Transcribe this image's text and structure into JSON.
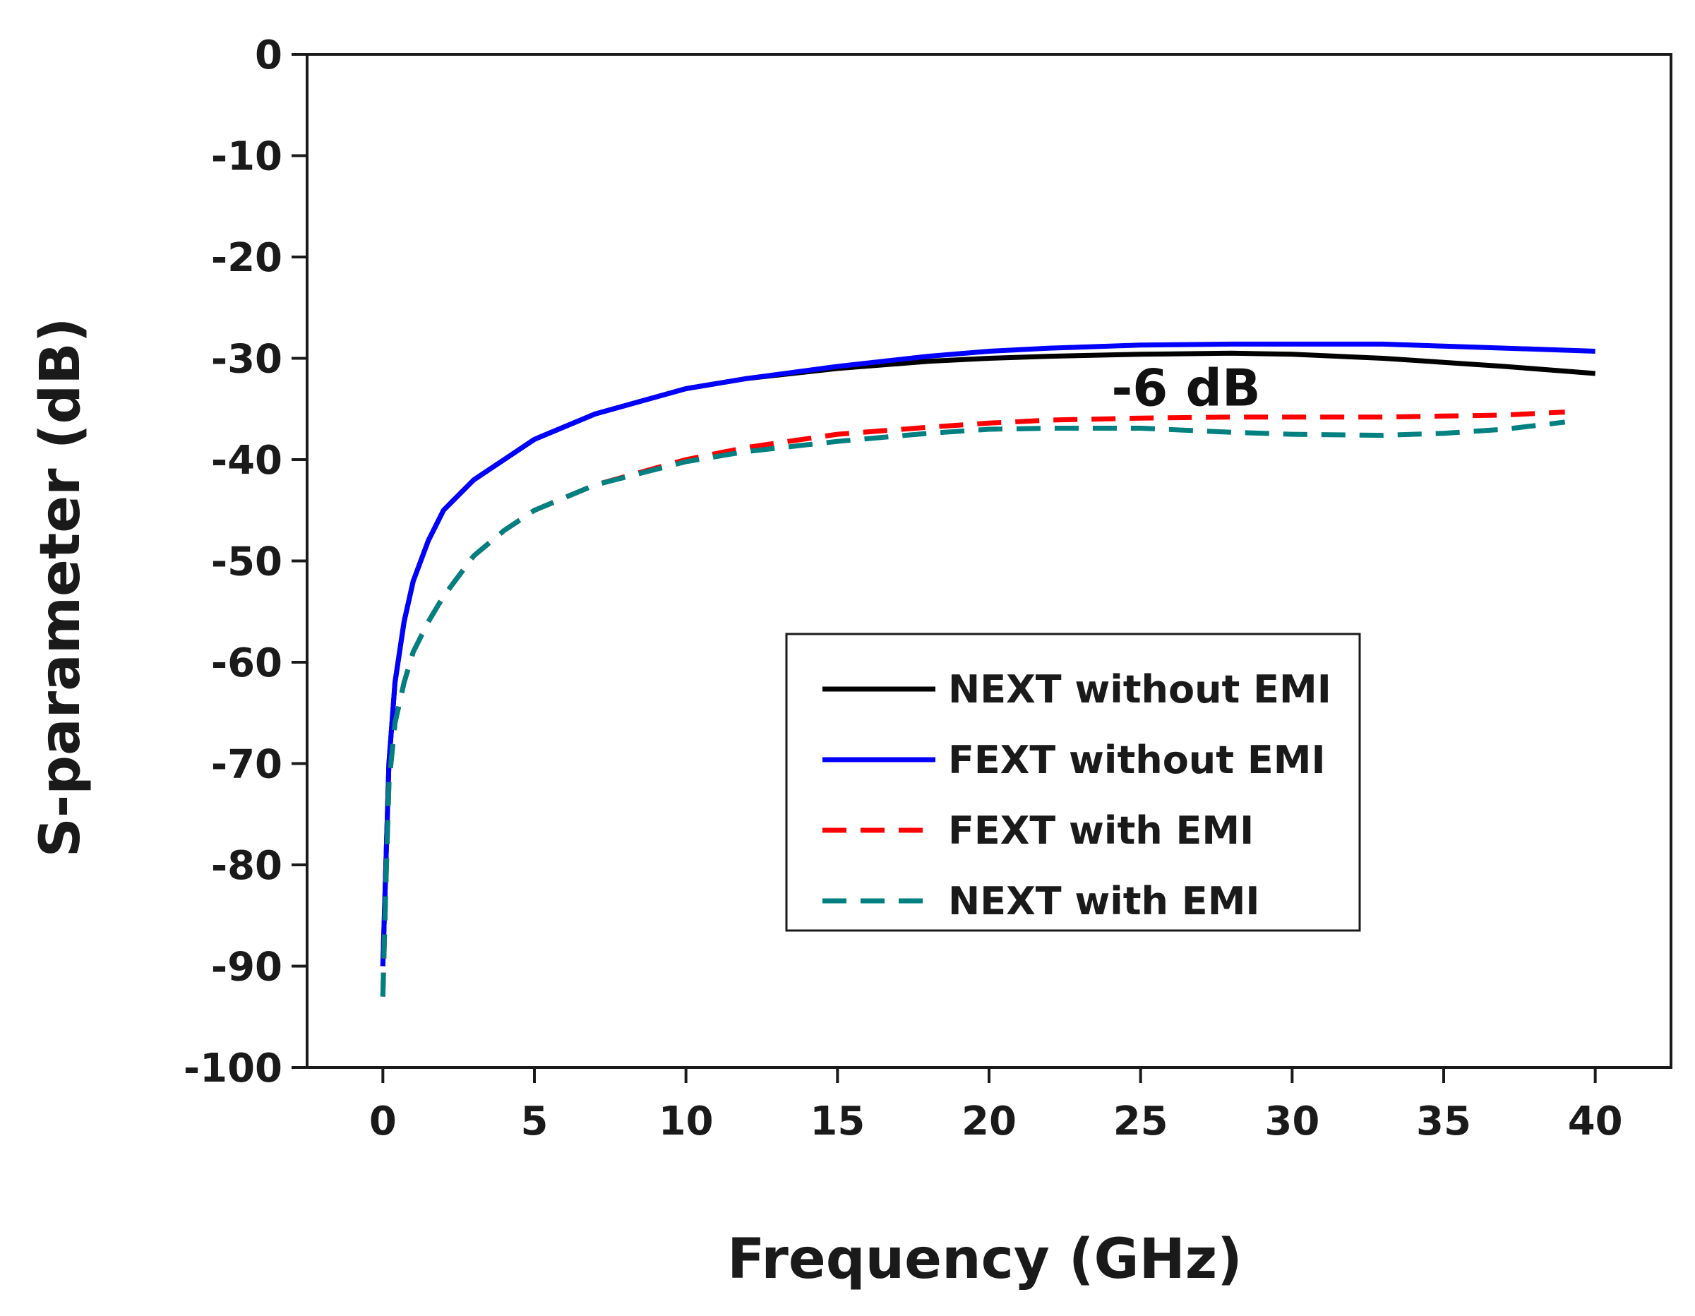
{
  "chart_data": {
    "type": "line",
    "xlabel": "Frequency (GHz)",
    "ylabel": "S-parameter (dB)",
    "xlim": [
      -2.5,
      42.5
    ],
    "ylim": [
      -100,
      0
    ],
    "xticks": [
      0,
      5,
      10,
      15,
      20,
      25,
      30,
      35,
      40
    ],
    "yticks": [
      0,
      -10,
      -20,
      -30,
      -40,
      -50,
      -60,
      -70,
      -80,
      -90,
      -100
    ],
    "grid": false,
    "legend_position": "center-right",
    "annotations": [
      {
        "text": "-6 dB",
        "x": 26.5,
        "y": -33
      }
    ],
    "series": [
      {
        "name": "NEXT without EMI",
        "color": "#000000",
        "style": "solid",
        "x": [
          0,
          0.1,
          0.2,
          0.4,
          0.7,
          1,
          1.5,
          2,
          3,
          4,
          5,
          7,
          10,
          12,
          15,
          18,
          20,
          22,
          25,
          28,
          30,
          33,
          35,
          37,
          40
        ],
        "y": [
          -90,
          -80,
          -70,
          -62,
          -56,
          -52,
          -48,
          -45,
          -42,
          -40,
          -38,
          -35.5,
          -33,
          -32,
          -31,
          -30.3,
          -30,
          -29.8,
          -29.6,
          -29.5,
          -29.6,
          -30,
          -30.4,
          -30.8,
          -31.5
        ]
      },
      {
        "name": "FEXT without EMI",
        "color": "#0000ff",
        "style": "solid",
        "x": [
          0,
          0.1,
          0.2,
          0.4,
          0.7,
          1,
          1.5,
          2,
          3,
          4,
          5,
          7,
          10,
          12,
          15,
          18,
          20,
          22,
          25,
          28,
          30,
          33,
          35,
          37,
          40
        ],
        "y": [
          -90,
          -80,
          -70,
          -62,
          -56,
          -52,
          -48,
          -45,
          -42,
          -40,
          -38,
          -35.5,
          -33,
          -32,
          -30.8,
          -29.8,
          -29.3,
          -29,
          -28.7,
          -28.6,
          -28.6,
          -28.6,
          -28.8,
          -29,
          -29.3
        ]
      },
      {
        "name": "FEXT with EMI",
        "color": "#ff0000",
        "style": "dashed",
        "x": [
          0,
          0.1,
          0.2,
          0.4,
          0.7,
          1,
          1.5,
          2,
          3,
          4,
          5,
          7,
          10,
          12,
          15,
          18,
          20,
          22,
          25,
          28,
          30,
          33,
          35,
          37,
          39
        ],
        "y": [
          -93,
          -82,
          -72,
          -66,
          -62,
          -59,
          -56,
          -53.5,
          -49.5,
          -47,
          -45,
          -42.5,
          -40,
          -38.8,
          -37.5,
          -36.8,
          -36.4,
          -36.1,
          -35.9,
          -35.8,
          -35.8,
          -35.8,
          -35.7,
          -35.6,
          -35.3
        ]
      },
      {
        "name": "NEXT with EMI",
        "color": "#008080",
        "style": "dashed",
        "x": [
          0,
          0.1,
          0.2,
          0.4,
          0.7,
          1,
          1.5,
          2,
          3,
          4,
          5,
          7,
          10,
          12,
          15,
          18,
          20,
          22,
          25,
          28,
          30,
          33,
          35,
          37,
          39
        ],
        "y": [
          -93,
          -82,
          -72,
          -66,
          -62,
          -59,
          -56,
          -53.5,
          -49.5,
          -47,
          -45,
          -42.5,
          -40.2,
          -39.2,
          -38.2,
          -37.4,
          -37,
          -36.9,
          -36.9,
          -37.3,
          -37.5,
          -37.6,
          -37.4,
          -37,
          -36.3
        ]
      }
    ]
  }
}
